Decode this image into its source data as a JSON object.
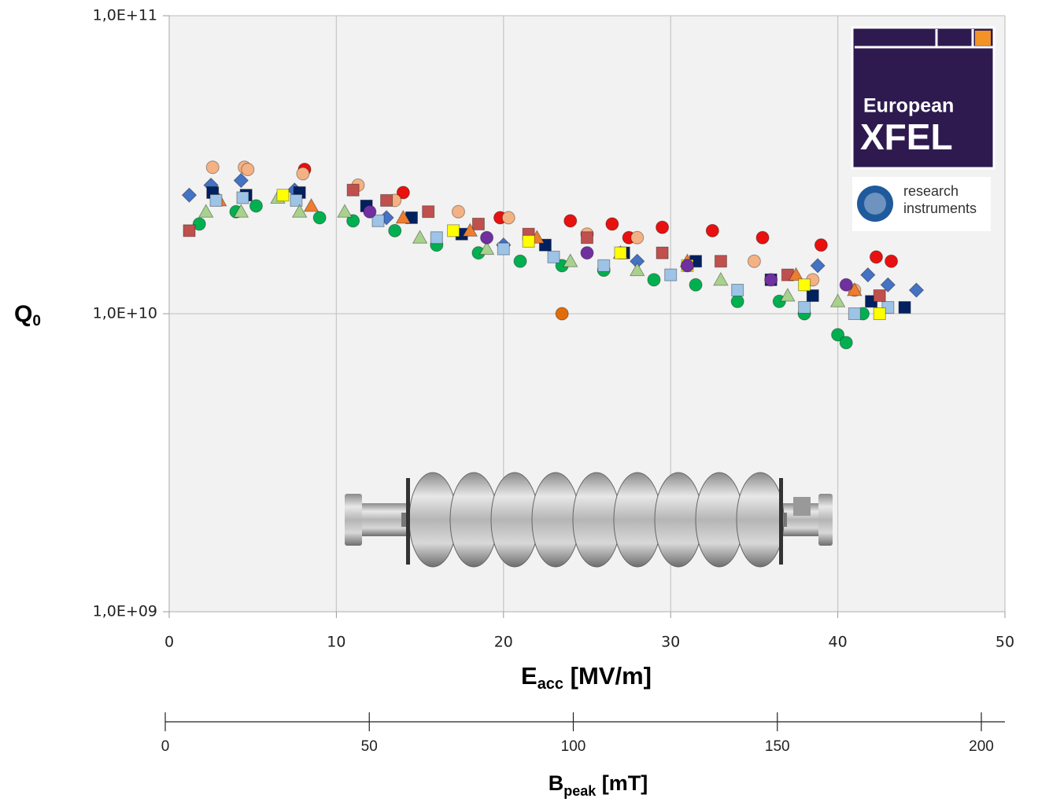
{
  "chart_data": {
    "type": "scatter",
    "ylabel": [
      "Q",
      "0"
    ],
    "xlabel": [
      "E",
      "acc",
      " [MV/m]"
    ],
    "xlim": [
      0,
      50
    ],
    "xticks": [
      0,
      10,
      20,
      30,
      40,
      50
    ],
    "ylim": [
      1000000000.0,
      100000000000.0
    ],
    "yticks": [
      {
        "value": 1000000000.0,
        "label": "1,0E+09"
      },
      {
        "value": 10000000000.0,
        "label": "1,0E+10"
      },
      {
        "value": 100000000000.0,
        "label": "1,0E+11"
      }
    ],
    "log_y": true,
    "grid": true,
    "x2lim": [
      0,
      200
    ],
    "x2ticks": [
      0,
      50,
      100,
      150,
      200
    ],
    "x2label": [
      "B",
      "peak",
      " [mT]"
    ],
    "logos": {
      "xfel": [
        "European",
        "XFEL"
      ],
      "ri": [
        "research",
        "instruments"
      ]
    },
    "series": [
      {
        "color": "#e8110f",
        "marker": "circle",
        "x": [
          8.1,
          24,
          26.5,
          29.5,
          32.5,
          35.5,
          39,
          42.3,
          43.2,
          14,
          19.8,
          27.5
        ],
        "values": [
          30500000000.0,
          20500000000.0,
          20000000000.0,
          19500000000.0,
          19000000000.0,
          18000000000.0,
          17000000000.0,
          15500000000.0,
          15000000000.0,
          25500000000.0,
          21000000000.0,
          18000000000.0
        ]
      },
      {
        "color": "#f4b183",
        "marker": "circle",
        "x": [
          2.6,
          4.5,
          4.7,
          8.0,
          11.3,
          13.5,
          17.3,
          20.3,
          25,
          28,
          35,
          38.5,
          41
        ],
        "values": [
          31000000000.0,
          31000000000.0,
          30500000000.0,
          29500000000.0,
          27000000000.0,
          24000000000.0,
          22000000000.0,
          21000000000.0,
          18500000000.0,
          18000000000.0,
          15000000000.0,
          13000000000.0,
          12000000000.0
        ]
      },
      {
        "color": "#4472c4",
        "marker": "diamond",
        "x": [
          1.2,
          2.5,
          4.3,
          7.5,
          13,
          20,
          28,
          38.8,
          41.8,
          43,
          44.7
        ],
        "values": [
          25000000000.0,
          27000000000.0,
          28000000000.0,
          26000000000.0,
          21000000000.0,
          17000000000.0,
          15000000000.0,
          14500000000.0,
          13500000000.0,
          12500000000.0,
          12000000000.0
        ]
      },
      {
        "color": "#00b050",
        "marker": "circle",
        "x": [
          1.8,
          4,
          5.2,
          9,
          11,
          13.5,
          16,
          18.5,
          21,
          23.5,
          26,
          29,
          31.5,
          34,
          36.5,
          38,
          40,
          40.5,
          41.5
        ],
        "values": [
          20000000000.0,
          22000000000.0,
          23000000000.0,
          21000000000.0,
          20500000000.0,
          19000000000.0,
          17000000000.0,
          16000000000.0,
          15000000000.0,
          14500000000.0,
          14000000000.0,
          13000000000.0,
          12500000000.0,
          11000000000.0,
          11000000000.0,
          10000000000.0,
          8500000000.0,
          8000000000.0,
          10000000000.0
        ]
      },
      {
        "color": "#002060",
        "marker": "square",
        "x": [
          2.6,
          4.6,
          7.8,
          11.8,
          14.5,
          17.5,
          22.5,
          27.2,
          31.5,
          36,
          38.5,
          42,
          44
        ],
        "values": [
          25500000000.0,
          25000000000.0,
          25500000000.0,
          23000000000.0,
          21000000000.0,
          18500000000.0,
          17000000000.0,
          16000000000.0,
          15000000000.0,
          13000000000.0,
          11500000000.0,
          11000000000.0,
          10500000000.0
        ]
      },
      {
        "color": "#c0504d",
        "marker": "square",
        "x": [
          1.2,
          11,
          13,
          15.5,
          18.5,
          21.5,
          25,
          29.5,
          33,
          37,
          42.5
        ],
        "values": [
          19000000000.0,
          26000000000.0,
          24000000000.0,
          22000000000.0,
          20000000000.0,
          18500000000.0,
          18000000000.0,
          16000000000.0,
          15000000000.0,
          13500000000.0,
          11500000000.0
        ]
      },
      {
        "color": "#ed7d31",
        "marker": "triangle",
        "x": [
          3,
          8.5,
          14,
          18,
          22,
          27,
          31,
          37.5,
          41
        ],
        "values": [
          24000000000.0,
          23000000000.0,
          21000000000.0,
          19000000000.0,
          18000000000.0,
          16000000000.0,
          15000000000.0,
          13500000000.0,
          12000000000.0
        ]
      },
      {
        "color": "#9dc3e6",
        "marker": "square",
        "x": [
          2.8,
          4.4,
          7.6,
          12.5,
          16,
          20,
          23,
          26,
          30,
          34,
          38,
          41,
          43
        ],
        "values": [
          24000000000.0,
          24500000000.0,
          24000000000.0,
          20500000000.0,
          18000000000.0,
          16500000000.0,
          15500000000.0,
          14500000000.0,
          13500000000.0,
          12000000000.0,
          10500000000.0,
          10000000000.0,
          10500000000.0
        ]
      },
      {
        "color": "#a9d18e",
        "marker": "triangle",
        "x": [
          2.2,
          4.3,
          6.5,
          7.8,
          10.5,
          15,
          19,
          24,
          28,
          33,
          37,
          40
        ],
        "values": [
          22000000000.0,
          22000000000.0,
          24500000000.0,
          22000000000.0,
          22000000000.0,
          18000000000.0,
          16500000000.0,
          15000000000.0,
          14000000000.0,
          13000000000.0,
          11500000000.0,
          11000000000.0
        ]
      },
      {
        "color": "#ffff00",
        "marker": "square",
        "x": [
          6.8,
          17,
          21.5,
          27,
          31,
          38,
          42.5
        ],
        "values": [
          25000000000.0,
          19000000000.0,
          17500000000.0,
          16000000000.0,
          14500000000.0,
          12500000000.0,
          10000000000.0
        ]
      },
      {
        "color": "#7030a0",
        "marker": "circle",
        "x": [
          12,
          19,
          25,
          31,
          36,
          40.5
        ],
        "values": [
          22000000000.0,
          18000000000.0,
          16000000000.0,
          14500000000.0,
          13000000000.0,
          12500000000.0
        ]
      },
      {
        "color": "#e36c0a",
        "marker": "circle",
        "x": [
          23.5
        ],
        "values": [
          10000000000.0
        ]
      }
    ]
  }
}
